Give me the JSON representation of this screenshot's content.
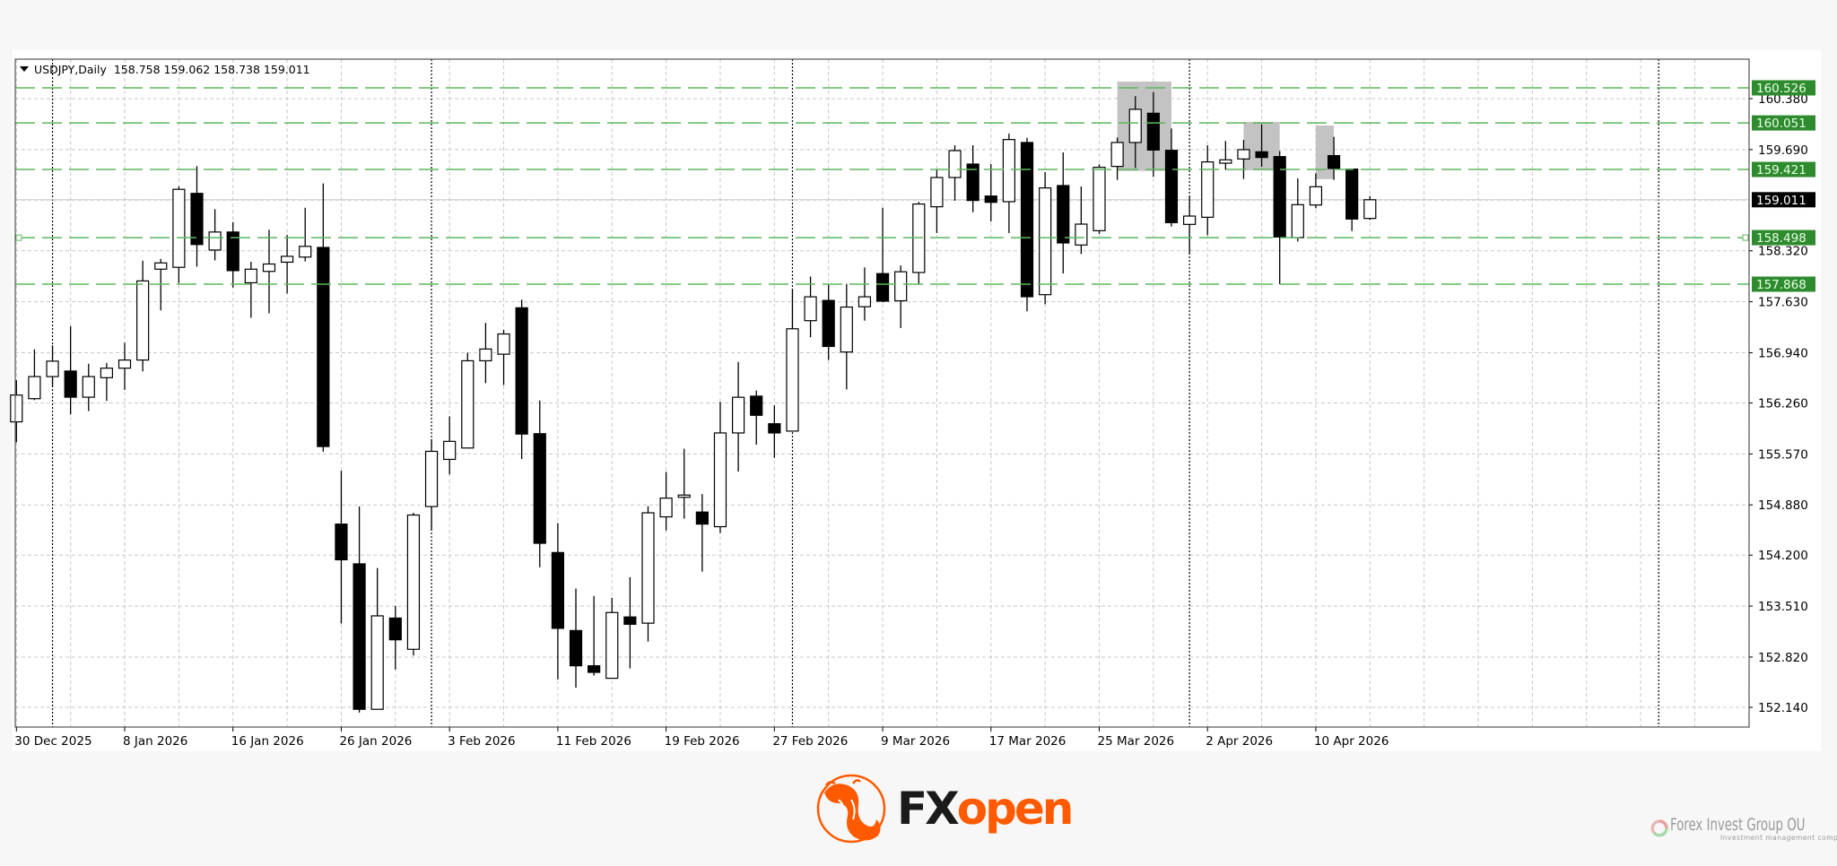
{
  "header": {
    "symbol": "USDJPY,Daily",
    "open": "158.758",
    "high": "159.062",
    "low": "158.738",
    "close": "159.011"
  },
  "chart_data": {
    "type": "candlestick",
    "symbol": "USDJPY",
    "timeframe": "Daily",
    "ylim": [
      152.0,
      160.68
    ],
    "y_ticks": [
      "160.380",
      "159.690",
      "158.320",
      "157.630",
      "156.940",
      "156.260",
      "155.570",
      "154.880",
      "154.200",
      "153.510",
      "152.820",
      "152.140"
    ],
    "hidden_grid_price": 159.005,
    "x_ticks": [
      {
        "index": 0,
        "label": "30 Dec 2025"
      },
      {
        "index": 6,
        "label": "8 Jan 2026"
      },
      {
        "index": 12,
        "label": "16 Jan 2026"
      },
      {
        "index": 18,
        "label": "26 Jan 2026"
      },
      {
        "index": 24,
        "label": "3 Feb 2026"
      },
      {
        "index": 30,
        "label": "11 Feb 2026"
      },
      {
        "index": 36,
        "label": "19 Feb 2026"
      },
      {
        "index": 42,
        "label": "27 Feb 2026"
      },
      {
        "index": 48,
        "label": "9 Mar 2026"
      },
      {
        "index": 54,
        "label": "17 Mar 2026"
      },
      {
        "index": 60,
        "label": "25 Mar 2026"
      },
      {
        "index": 66,
        "label": "2 Apr 2026"
      },
      {
        "index": 72,
        "label": "10 Apr 2026"
      }
    ],
    "period_separators": [
      2,
      23,
      43,
      65,
      91
    ],
    "grid": true,
    "current_price": {
      "value": 159.011,
      "label": "159.011"
    },
    "levels": [
      {
        "value": 160.526,
        "label": "160.526"
      },
      {
        "value": 160.051,
        "label": "160.051"
      },
      {
        "value": 159.421,
        "label": "159.421"
      },
      {
        "value": 158.498,
        "label": "158.498"
      },
      {
        "value": 157.868,
        "label": "157.868"
      }
    ],
    "highlight_zones": [
      {
        "from_index": 61,
        "to_index": 64,
        "price_high": 160.61,
        "price_low": 159.4
      },
      {
        "from_index": 68,
        "to_index": 70,
        "price_high": 160.065,
        "price_low": 159.41
      },
      {
        "from_index": 72,
        "to_index": 73,
        "price_high": 160.016,
        "price_low": 159.29
      }
    ],
    "ohlc": [
      [
        156.004,
        156.567,
        155.73,
        156.367
      ],
      [
        156.318,
        156.985,
        156.298,
        156.617
      ],
      [
        156.617,
        157.04,
        156.477,
        156.826
      ],
      [
        156.692,
        157.299,
        156.104,
        156.338
      ],
      [
        156.338,
        156.791,
        156.149,
        156.617
      ],
      [
        156.602,
        156.801,
        156.288,
        156.731
      ],
      [
        156.731,
        157.075,
        156.437,
        156.841
      ],
      [
        156.841,
        158.186,
        156.687,
        157.912
      ],
      [
        158.071,
        158.21,
        157.513,
        158.156
      ],
      [
        158.096,
        159.192,
        157.882,
        159.152
      ],
      [
        159.097,
        159.466,
        158.106,
        158.405
      ],
      [
        158.33,
        158.883,
        158.19,
        158.574
      ],
      [
        158.574,
        158.708,
        157.822,
        158.051
      ],
      [
        157.887,
        158.171,
        157.414,
        158.071
      ],
      [
        158.041,
        158.604,
        157.473,
        158.141
      ],
      [
        158.166,
        158.534,
        157.742,
        158.245
      ],
      [
        158.235,
        158.903,
        158.176,
        158.38
      ],
      [
        158.365,
        159.231,
        155.6,
        155.67
      ],
      [
        154.62,
        155.342,
        153.275,
        154.137
      ],
      [
        154.082,
        154.859,
        152.068,
        152.113
      ],
      [
        152.113,
        154.026,
        152.113,
        153.378
      ],
      [
        153.348,
        153.512,
        152.651,
        153.054
      ],
      [
        152.925,
        154.773,
        152.84,
        154.743
      ],
      [
        154.858,
        155.77,
        154.534,
        155.605
      ],
      [
        155.496,
        156.079,
        155.292,
        155.74
      ],
      [
        155.65,
        156.94,
        155.65,
        156.831
      ],
      [
        156.831,
        157.344,
        156.527,
        156.99
      ],
      [
        156.92,
        157.249,
        156.502,
        157.194
      ],
      [
        157.548,
        157.658,
        155.501,
        155.839
      ],
      [
        155.844,
        156.293,
        154.036,
        154.36
      ],
      [
        154.235,
        154.634,
        152.518,
        153.209
      ],
      [
        153.179,
        153.747,
        152.406,
        152.702
      ],
      [
        152.702,
        153.647,
        152.568,
        152.613
      ],
      [
        152.533,
        153.622,
        152.533,
        153.423
      ],
      [
        153.363,
        153.901,
        152.666,
        153.264
      ],
      [
        153.279,
        154.863,
        153.03,
        154.773
      ],
      [
        154.718,
        155.326,
        154.534,
        154.972
      ],
      [
        154.983,
        155.64,
        154.694,
        155.013
      ],
      [
        154.783,
        155.027,
        153.977,
        154.62
      ],
      [
        154.585,
        156.273,
        154.499,
        155.854
      ],
      [
        155.854,
        156.816,
        155.331,
        156.337
      ],
      [
        156.352,
        156.427,
        155.695,
        156.093
      ],
      [
        155.979,
        156.228,
        155.516,
        155.854
      ],
      [
        155.879,
        157.797,
        155.879,
        157.264
      ],
      [
        157.374,
        157.971,
        157.15,
        157.697
      ],
      [
        157.648,
        157.872,
        156.841,
        157.025
      ],
      [
        156.95,
        157.872,
        156.442,
        157.558
      ],
      [
        157.563,
        158.096,
        157.374,
        157.697
      ],
      [
        158.011,
        158.903,
        157.623,
        157.638
      ],
      [
        157.643,
        158.121,
        157.274,
        158.036
      ],
      [
        158.026,
        158.982,
        157.872,
        158.953
      ],
      [
        158.916,
        159.426,
        158.56,
        159.312
      ],
      [
        159.312,
        159.749,
        158.997,
        159.676
      ],
      [
        159.494,
        159.749,
        158.843,
        159.001
      ],
      [
        159.061,
        159.494,
        158.717,
        158.976
      ],
      [
        158.985,
        159.907,
        158.56,
        159.826
      ],
      [
        159.786,
        159.85,
        157.5,
        157.698
      ],
      [
        157.726,
        159.385,
        157.597,
        159.171
      ],
      [
        159.203,
        159.652,
        158.013,
        158.426
      ],
      [
        158.398,
        159.191,
        158.276,
        158.681
      ],
      [
        158.592,
        159.49,
        158.548,
        159.45
      ],
      [
        159.462,
        159.854,
        159.28,
        159.786
      ],
      [
        159.786,
        160.413,
        159.442,
        160.235
      ],
      [
        160.182,
        160.469,
        159.32,
        159.684
      ],
      [
        159.68,
        159.976,
        158.649,
        158.701
      ],
      [
        158.677,
        159.061,
        158.276,
        158.79
      ],
      [
        158.774,
        159.749,
        158.531,
        159.523
      ],
      [
        159.506,
        159.806,
        159.417,
        159.551
      ],
      [
        159.563,
        159.822,
        159.292,
        159.689
      ],
      [
        159.66,
        160.032,
        159.458,
        159.583
      ],
      [
        159.595,
        159.672,
        157.868,
        158.507
      ],
      [
        158.499,
        159.3,
        158.446,
        158.944
      ],
      [
        158.94,
        159.369,
        158.895,
        159.187
      ],
      [
        159.608,
        159.862,
        159.28,
        159.434
      ],
      [
        159.426,
        159.426,
        158.588,
        158.75
      ],
      [
        158.758,
        159.062,
        158.738,
        159.011
      ]
    ],
    "colors": {
      "bull_body": "#ffffff",
      "bear_body": "#000000",
      "candle_outline": "#000000",
      "level_line": "#5cb85c",
      "level_label_bg": "#2e8b2e",
      "current_label_bg": "#000000",
      "zone": "#c0c0c0",
      "grid": "#c8c8c8"
    }
  },
  "branding": {
    "logo_text_fx": "FX",
    "logo_text_open": "open",
    "brand_color": "#ff5a00",
    "partner_name": "Forex Invest Group OU",
    "partner_tagline": "Investment management company"
  }
}
